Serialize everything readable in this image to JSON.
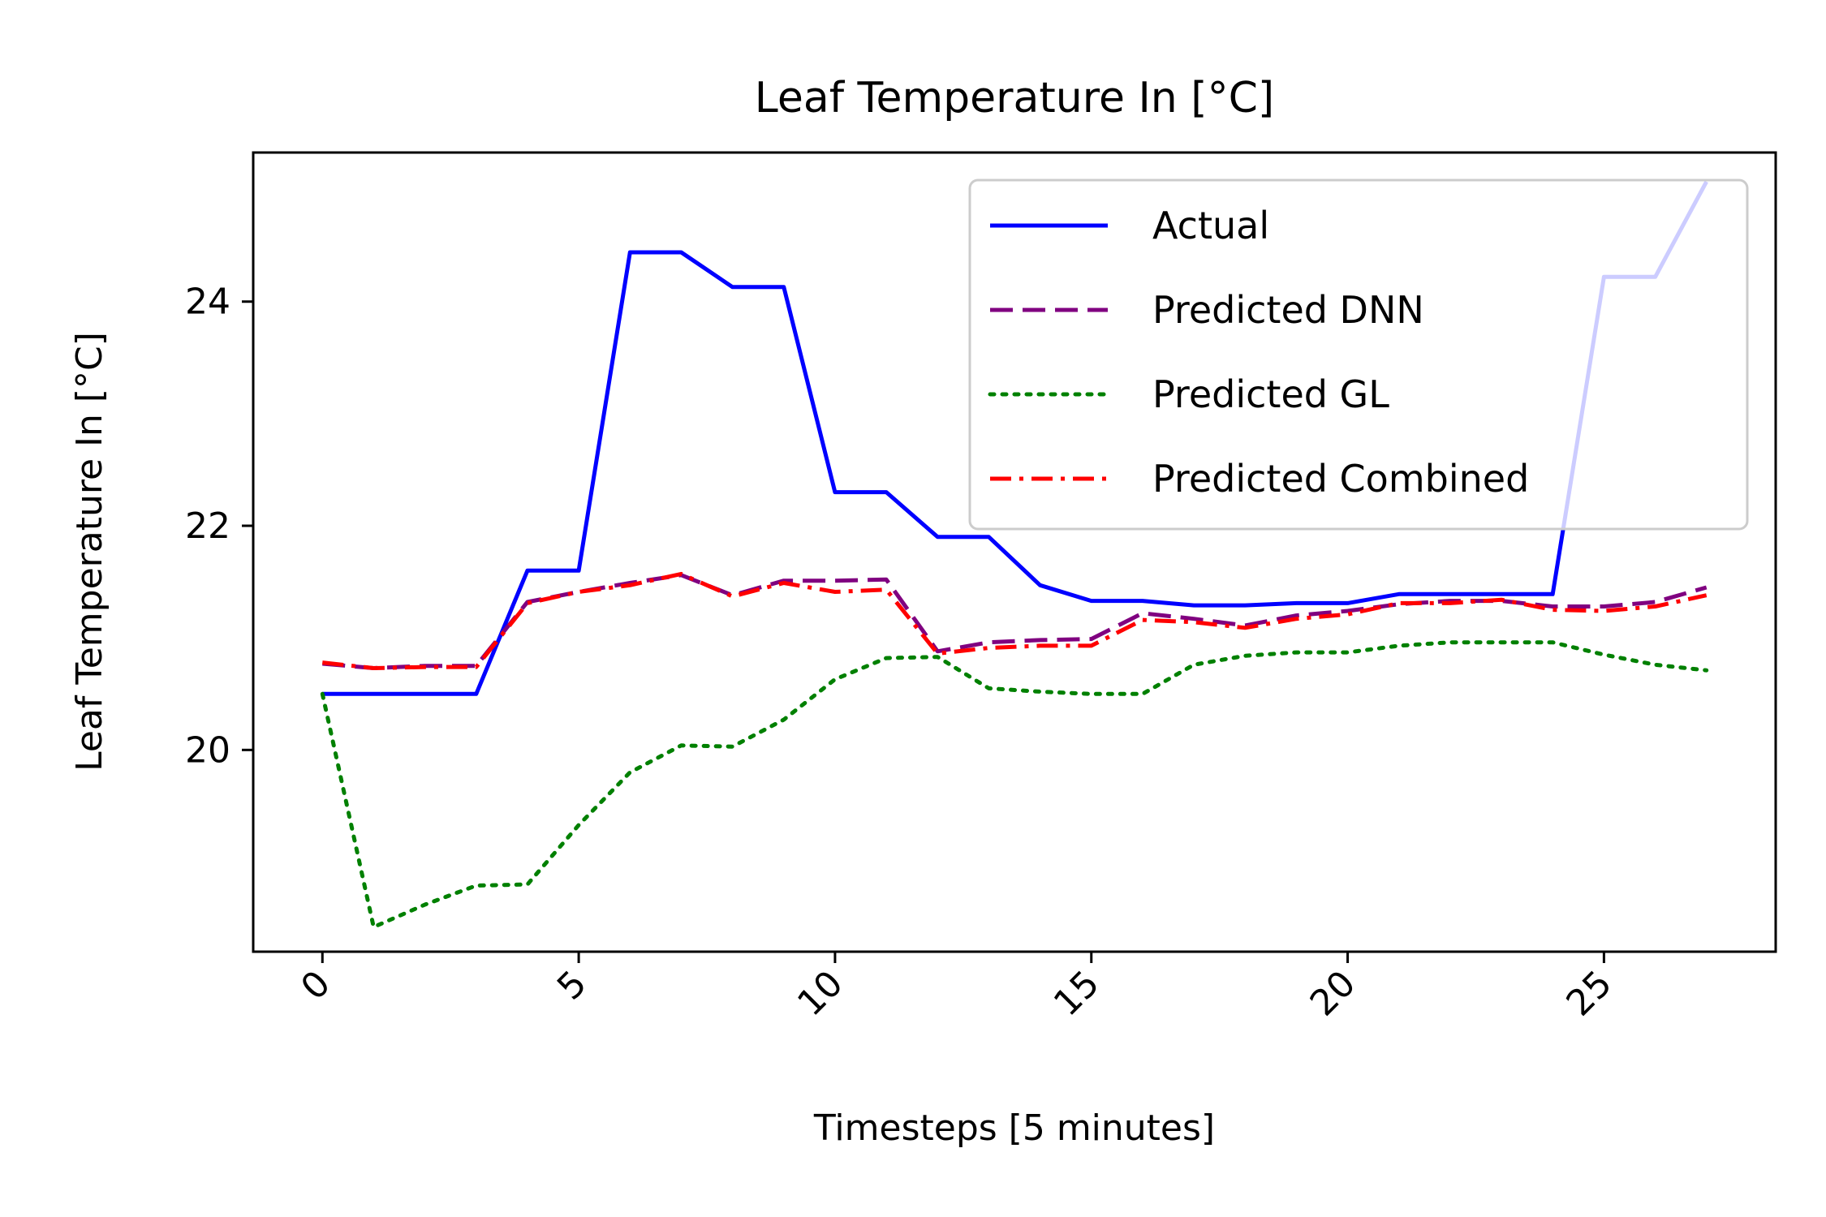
{
  "chart_data": {
    "type": "line",
    "title": "Leaf Temperature In [°C]",
    "xlabel": "Timesteps [5 minutes]",
    "ylabel": "Leaf Temperature In [°C]",
    "xlim": [
      -1.35,
      28.35
    ],
    "ylim": [
      18.2,
      25.33
    ],
    "xticks": [
      0,
      5,
      10,
      15,
      20,
      25
    ],
    "xtick_labels": [
      "0",
      "5",
      "10",
      "15",
      "20",
      "25"
    ],
    "yticks": [
      20,
      22,
      24
    ],
    "ytick_labels": [
      "20",
      "22",
      "24"
    ],
    "grid": false,
    "legend_position": "top-right",
    "x": [
      0,
      1,
      2,
      3,
      4,
      5,
      6,
      7,
      8,
      9,
      10,
      11,
      12,
      13,
      14,
      15,
      16,
      17,
      18,
      19,
      20,
      21,
      22,
      23,
      24,
      25,
      26,
      27
    ],
    "series": [
      {
        "name": "Actual",
        "color": "#0000ff",
        "style": "solid",
        "values": [
          20.5,
          20.5,
          20.5,
          20.5,
          21.6,
          21.6,
          24.44,
          24.44,
          24.13,
          24.13,
          22.3,
          22.3,
          21.9,
          21.9,
          21.47,
          21.33,
          21.33,
          21.29,
          21.29,
          21.31,
          21.31,
          21.39,
          21.39,
          21.39,
          21.39,
          24.22,
          24.22,
          25.07
        ]
      },
      {
        "name": "Predicted DNN",
        "color": "#800080",
        "style": "dashed",
        "values": [
          20.77,
          20.73,
          20.75,
          20.75,
          21.32,
          21.41,
          21.49,
          21.56,
          21.38,
          21.51,
          21.51,
          21.52,
          20.88,
          20.96,
          20.98,
          20.99,
          21.22,
          21.17,
          21.11,
          21.2,
          21.24,
          21.3,
          21.33,
          21.33,
          21.28,
          21.28,
          21.32,
          21.45
        ]
      },
      {
        "name": "Predicted GL",
        "color": "#008000",
        "style": "dotted",
        "values": [
          20.5,
          18.42,
          18.62,
          18.79,
          18.8,
          19.33,
          19.8,
          20.04,
          20.03,
          20.27,
          20.63,
          20.82,
          20.83,
          20.55,
          20.52,
          20.5,
          20.5,
          20.76,
          20.84,
          20.87,
          20.87,
          20.93,
          20.96,
          20.96,
          20.96,
          20.85,
          20.76,
          20.71
        ]
      },
      {
        "name": "Predicted Combined",
        "color": "#ff0000",
        "style": "dashdot",
        "values": [
          20.78,
          20.73,
          20.74,
          20.74,
          21.31,
          21.41,
          21.47,
          21.57,
          21.37,
          21.49,
          21.41,
          21.43,
          20.86,
          20.91,
          20.93,
          20.93,
          21.16,
          21.14,
          21.09,
          21.17,
          21.21,
          21.31,
          21.31,
          21.34,
          21.25,
          21.24,
          21.28,
          21.38
        ]
      }
    ]
  }
}
